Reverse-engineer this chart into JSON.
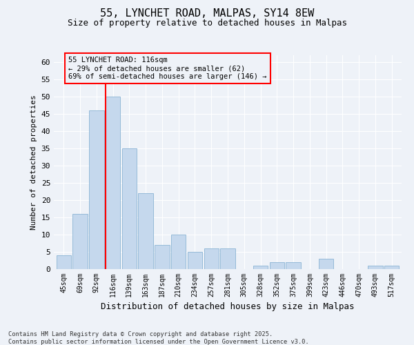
{
  "title1": "55, LYNCHET ROAD, MALPAS, SY14 8EW",
  "title2": "Size of property relative to detached houses in Malpas",
  "xlabel": "Distribution of detached houses by size in Malpas",
  "ylabel": "Number of detached properties",
  "categories": [
    "45sqm",
    "69sqm",
    "92sqm",
    "116sqm",
    "139sqm",
    "163sqm",
    "187sqm",
    "210sqm",
    "234sqm",
    "257sqm",
    "281sqm",
    "305sqm",
    "328sqm",
    "352sqm",
    "375sqm",
    "399sqm",
    "423sqm",
    "446sqm",
    "470sqm",
    "493sqm",
    "517sqm"
  ],
  "values": [
    4,
    16,
    46,
    50,
    35,
    22,
    7,
    10,
    5,
    6,
    6,
    0,
    1,
    2,
    2,
    0,
    3,
    0,
    0,
    1,
    1
  ],
  "bar_color": "#c5d8ed",
  "bar_edge_color": "#8ab4d4",
  "red_line_index": 3,
  "ylim": [
    0,
    62
  ],
  "yticks": [
    0,
    5,
    10,
    15,
    20,
    25,
    30,
    35,
    40,
    45,
    50,
    55,
    60
  ],
  "annotation_title": "55 LYNCHET ROAD: 116sqm",
  "annotation_line1": "← 29% of detached houses are smaller (62)",
  "annotation_line2": "69% of semi-detached houses are larger (146) →",
  "footnote1": "Contains HM Land Registry data © Crown copyright and database right 2025.",
  "footnote2": "Contains public sector information licensed under the Open Government Licence v3.0.",
  "bg_color": "#eef2f8",
  "grid_color": "#ffffff"
}
